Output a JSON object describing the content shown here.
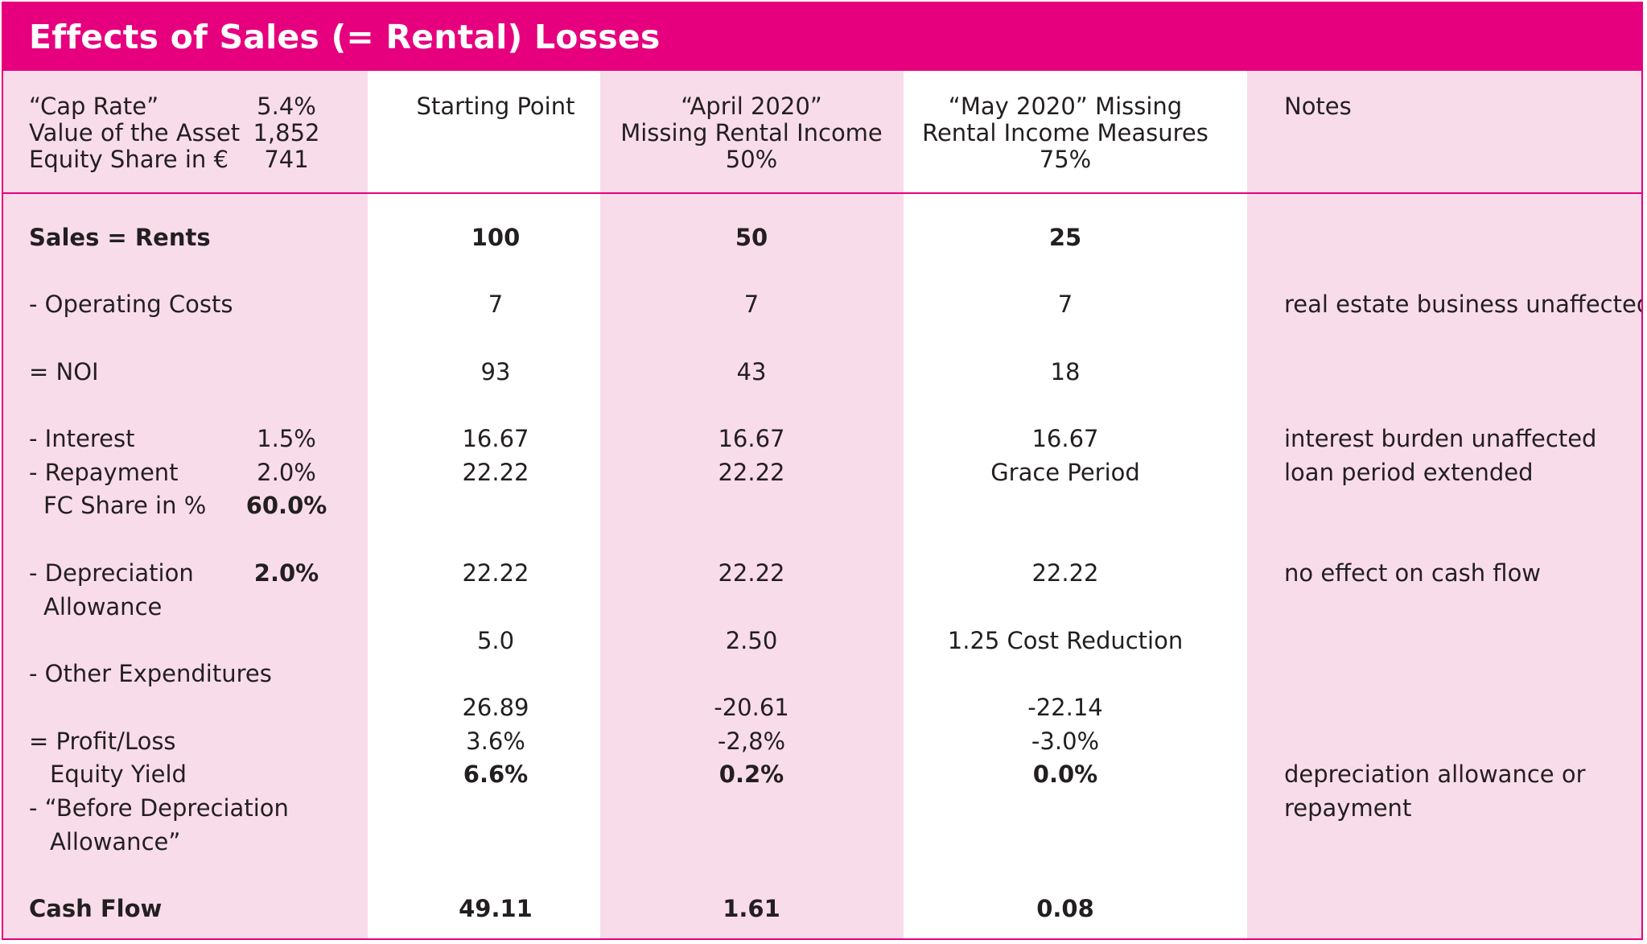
{
  "title": "Effects of Sales (= Rental) Losses",
  "header": {
    "params": [
      {
        "label": "“Cap Rate”",
        "value": "5.4%"
      },
      {
        "label": "Value of the Asset",
        "value": "1,852"
      },
      {
        "label": "Equity Share in €",
        "value": "741"
      }
    ],
    "col_start": [
      "Starting Point"
    ],
    "col_april": [
      "“April 2020”",
      "Missing Rental Income",
      "50%"
    ],
    "col_may": [
      "“May 2020” Missing",
      "Rental Income Measures",
      "75%"
    ],
    "col_notes": [
      "Notes"
    ]
  },
  "rows": {
    "sales": {
      "label": "Sales = Rents",
      "start": "100",
      "april": "50",
      "may": "25"
    },
    "operating": {
      "label": "- Operating Costs",
      "start": "7",
      "april": "7",
      "may": "7",
      "note": "real estate business unaffected"
    },
    "noi": {
      "label": "= NOI",
      "start": "93",
      "april": "43",
      "may": "18"
    },
    "interest": {
      "label": "- Interest",
      "rate": "1.5%",
      "start": "16.67",
      "april": "16.67",
      "may": "16.67",
      "note": "interest burden unaffected"
    },
    "repayment": {
      "label": "- Repayment",
      "rate": "2.0%",
      "start": "22.22",
      "april": "22.22",
      "may": "Grace Period",
      "note": "loan period extended"
    },
    "fc_share": {
      "label": "FC Share in %",
      "rate": "60.0%"
    },
    "depreciation": {
      "label": "- Depreciation",
      "label2": "Allowance",
      "rate": "2.0%",
      "start": "22.22",
      "april": "22.22",
      "may": "22.22",
      "note": "no effect on cash flow"
    },
    "other_values": {
      "start": "5.0",
      "april": "2.50",
      "may": "1.25 Cost Reduction"
    },
    "other": {
      "label": "- Other Expenditures"
    },
    "profit_values": {
      "start": "26.89",
      "april": "-20.61",
      "may": "-22.14"
    },
    "profit": {
      "label": "= Profit/Loss",
      "start": "3.6%",
      "april": "-2,8%",
      "may": "-3.0%"
    },
    "equity_yield": {
      "label": "Equity Yield",
      "start": "6.6%",
      "april": "0.2%",
      "may": "0.0%",
      "note": "depreciation allowance or",
      "note2": "repayment"
    },
    "before_dep": {
      "label": "- “Before Depreciation",
      "label2": "Allowance”"
    },
    "cash_flow": {
      "label": "Cash Flow",
      "start": "49.11",
      "april": "1.61",
      "may": "0.08"
    }
  },
  "colors": {
    "accent": "#e6007e",
    "pink_column": "#f9dcea"
  }
}
